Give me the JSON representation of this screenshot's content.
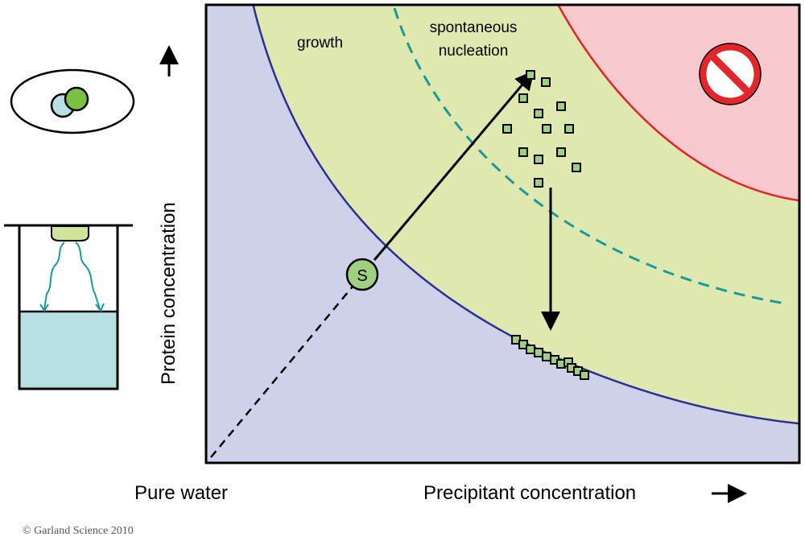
{
  "labels": {
    "growth": "growth",
    "spontaneous": "spontaneous",
    "nucleation": "nucleation",
    "seed": "S",
    "y_axis": "Protein concentration",
    "x_axis": "Precipitant concentration",
    "origin": "Pure water",
    "copyright": "© Garland Science 2010"
  },
  "colors": {
    "undersaturated": "#cfd0ea",
    "supersaturated": "#dfe8ae",
    "precipitation": "#f7c9cd",
    "solubility_curve": "#2b2f96",
    "precipitation_curve": "#e3262b",
    "nucleation_curve": "#1a9a9a",
    "crystal": "#9fd07f",
    "drop": "#b8e0e2"
  }
}
